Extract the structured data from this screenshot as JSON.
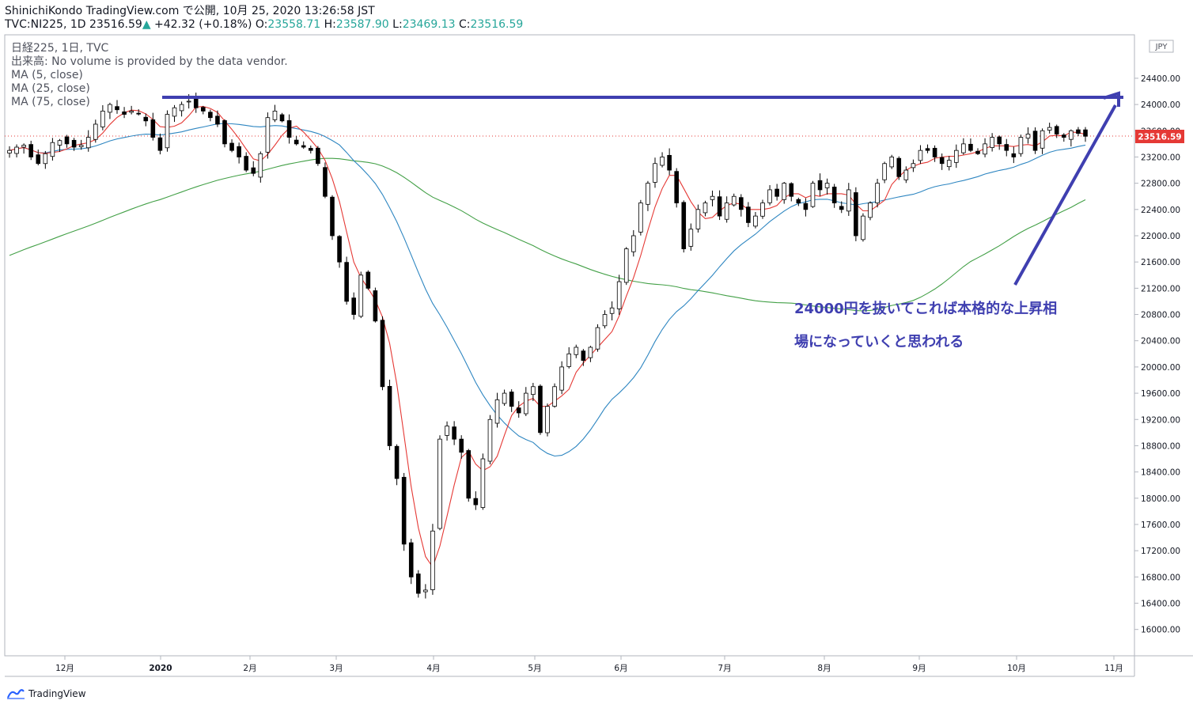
{
  "header": {
    "publisher_line": "ShinichiKondo TradingView.com で公開, 10月 25, 2020 13:26:58 JST",
    "symbol": "TVC:NI225, 1D",
    "last": "23516.59",
    "up_arrow": "▲",
    "change": "+42.32 (+0.18%)",
    "o_label": "O:",
    "o": "23558.71",
    "h_label": "H:",
    "h": "23587.90",
    "l_label": "L:",
    "l": "23469.13",
    "c_label": "C:",
    "c": "23516.59"
  },
  "legend": {
    "series_title": "日経225, 1日, TVC",
    "volume_note": "出来高: No volume is provided by the data vendor.",
    "ma5": "MA (5, close)",
    "ma25": "MA (25, close)",
    "ma75": "MA (75, close)"
  },
  "annotation": {
    "line1": "24000円を抜いてこれば本格的な上昇相",
    "line2": "場になっていくと思われる"
  },
  "currency_badge": "JPY",
  "last_price_label": "23516.59",
  "brand": "TradingView",
  "colors": {
    "candle_down": "#000000",
    "candle_up_fill": "#ffffff",
    "ma5": "#e53935",
    "ma25": "#2e86c1",
    "ma75": "#43a047",
    "annotation": "#3f3fb0",
    "last_price": "#e53935"
  },
  "chart_data": {
    "type": "candlestick",
    "y_axis": {
      "ticks": [
        "24400.00",
        "24000.00",
        "23600.00",
        "23200.00",
        "22800.00",
        "22400.00",
        "22000.00",
        "21600.00",
        "21200.00",
        "20800.00",
        "20400.00",
        "20000.00",
        "19600.00",
        "19200.00",
        "18800.00",
        "18400.00",
        "18000.00",
        "17600.00",
        "17200.00",
        "16800.00",
        "16400.00",
        "16000.00"
      ]
    },
    "x_axis": {
      "ticks": [
        "12月",
        "2020",
        "2月",
        "3月",
        "4月",
        "5月",
        "6月",
        "7月",
        "8月",
        "9月",
        "10月",
        "11月"
      ]
    },
    "resistance_level": 24100,
    "approx_closes": [
      23300,
      23350,
      23380,
      23200,
      23100,
      23250,
      23420,
      23450,
      23400,
      23350,
      23380,
      23500,
      23700,
      23900,
      24000,
      23920,
      23850,
      23900,
      23860,
      23750,
      23500,
      23300,
      23850,
      23950,
      24000,
      24050,
      23950,
      23900,
      23800,
      23700,
      23400,
      23300,
      23200,
      23000,
      22950,
      23250,
      23800,
      23900,
      23750,
      23500,
      23400,
      23350,
      23300,
      23100,
      22600,
      22000,
      21600,
      21000,
      20800,
      21400,
      21200,
      20700,
      19700,
      18800,
      18300,
      17300,
      16800,
      16550,
      16600,
      17500,
      18900,
      19100,
      18900,
      18700,
      18000,
      17900,
      18600,
      19200,
      19500,
      19600,
      19400,
      19300,
      19600,
      19700,
      19000,
      19400,
      19700,
      20000,
      20200,
      20300,
      20100,
      20300,
      20600,
      20800,
      20900,
      21300,
      21800,
      22000,
      22500,
      22800,
      23100,
      23200,
      23000,
      22500,
      21800,
      22100,
      22400,
      22500,
      22600,
      22300,
      22500,
      22600,
      22400,
      22200,
      22300,
      22500,
      22700,
      22600,
      22800,
      22600,
      22500,
      22400,
      22800,
      22700,
      22800,
      22500,
      22400,
      22700,
      22000,
      22300,
      22500,
      22800,
      23100,
      23200,
      22900,
      23000,
      23100,
      23300,
      23300,
      23200,
      23100,
      23150,
      23300,
      23400,
      23300,
      23250,
      23400,
      23500,
      23400,
      23300,
      23200,
      23500,
      23550,
      23300,
      23600,
      23650,
      23550,
      23500,
      23600,
      23560,
      23516
    ]
  }
}
